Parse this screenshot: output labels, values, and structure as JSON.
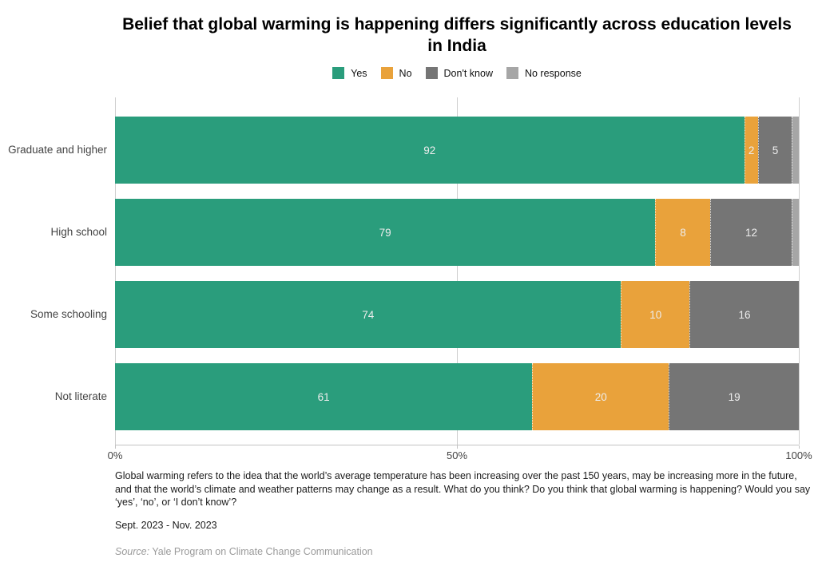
{
  "title": "Belief that global warming is happening differs significantly across education levels in India",
  "legend": [
    {
      "label": "Yes",
      "color": "#2a9d7c"
    },
    {
      "label": "No",
      "color": "#e9a23b"
    },
    {
      "label": "Don't know",
      "color": "#757575"
    },
    {
      "label": "No response",
      "color": "#a6a6a6"
    }
  ],
  "chart_data": {
    "type": "bar",
    "orientation": "horizontal",
    "stacked": true,
    "title": "Belief that global warming is happening differs significantly across education levels in India",
    "categories": [
      "Graduate and higher",
      "High school",
      "Some schooling",
      "Not literate"
    ],
    "series": [
      {
        "name": "Yes",
        "color": "#2a9d7c",
        "values": [
          92,
          79,
          74,
          61
        ]
      },
      {
        "name": "No",
        "color": "#e9a23b",
        "values": [
          2,
          8,
          10,
          20
        ]
      },
      {
        "name": "Don't know",
        "color": "#757575",
        "values": [
          5,
          12,
          16,
          19
        ]
      },
      {
        "name": "No response",
        "color": "#a6a6a6",
        "values": [
          1,
          1,
          0,
          0
        ]
      }
    ],
    "xlabel": "",
    "ylabel": "",
    "x_range": [
      0,
      100
    ],
    "x_ticks": [
      "0%",
      "50%",
      "100%"
    ],
    "grid": "vertical-at-ticks",
    "legend_position": "top",
    "min_label_value": 2,
    "bar_label_color": "#ededed"
  },
  "footnote": "Global warming refers to the idea that the world’s average temperature has been increasing over the past 150 years, may be increasing more in the future, and that the world’s climate and weather patterns may change as a result. What do you think? Do you think that global warming is happening? Would you say ‘yes’, ‘no’, or ‘I don’t know’?",
  "date_range": "Sept. 2023 - Nov. 2023",
  "source": {
    "label": "Source:",
    "text": "Yale Program on Climate Change Communication"
  }
}
